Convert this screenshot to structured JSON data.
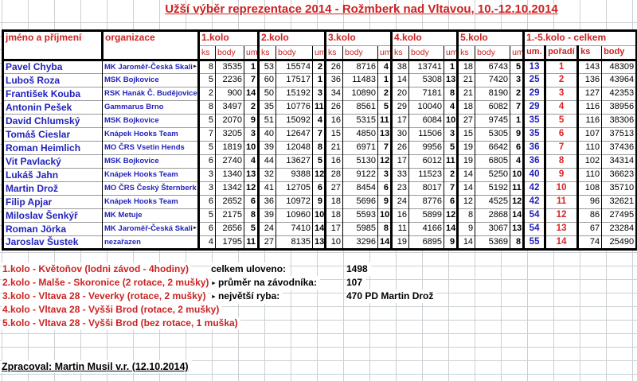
{
  "title": "Užší výběr reprezentace 2014 - Rožmberk nad Vltavou, 10.-12.10.2014",
  "colors": {
    "header_red": "#cc2222",
    "name_blue": "#2222bb",
    "poradi_red": "#dd2222",
    "gridline": "#cbd0d4",
    "table_border": "#000000"
  },
  "truncation_marker": "►",
  "table": {
    "headers": {
      "name": "jméno a příjmení",
      "org": "organizace",
      "rounds": [
        "1.kolo",
        "2.kolo",
        "3.kolo",
        "4.kolo",
        "5.kolo"
      ],
      "round_sub": [
        "ks",
        "body",
        "um."
      ],
      "total": "1.-5.kolo - celkem",
      "total_sub": [
        "um.",
        "pořadí",
        "ks",
        "body"
      ]
    },
    "rows": [
      {
        "name": "Pavel Chyba",
        "org": "MK Jaroměř-Česká Skalice",
        "org_truncated": true,
        "k": [
          [
            8,
            3535,
            1
          ],
          [
            53,
            15574,
            2
          ],
          [
            26,
            8716,
            4
          ],
          [
            38,
            13741,
            1
          ],
          [
            18,
            6743,
            5
          ]
        ],
        "um": 13,
        "poradi": 1,
        "ks": 143,
        "body": 48309
      },
      {
        "name": "Luboš Roza",
        "org": "MSK Bojkovice",
        "k": [
          [
            5,
            2236,
            7
          ],
          [
            60,
            17517,
            1
          ],
          [
            36,
            11483,
            1
          ],
          [
            14,
            5308,
            13
          ],
          [
            21,
            7420,
            3
          ]
        ],
        "um": 25,
        "poradi": 2,
        "ks": 136,
        "body": 43964
      },
      {
        "name": "František Kouba",
        "org": "RSK Hanák Č. Budějovice",
        "k": [
          [
            2,
            900,
            14
          ],
          [
            50,
            15192,
            3
          ],
          [
            34,
            10890,
            2
          ],
          [
            20,
            7181,
            8
          ],
          [
            21,
            8190,
            2
          ]
        ],
        "um": 29,
        "poradi": 3,
        "ks": 127,
        "body": 42353
      },
      {
        "name": "Antonin Pešek",
        "org": "Gammarus Brno",
        "k": [
          [
            8,
            3497,
            2
          ],
          [
            35,
            10776,
            11
          ],
          [
            26,
            8561,
            5
          ],
          [
            29,
            10040,
            4
          ],
          [
            18,
            6082,
            7
          ]
        ],
        "um": 29,
        "poradi": 4,
        "ks": 116,
        "body": 38956
      },
      {
        "name": "David Chlumský",
        "org": "MSK Bojkovice",
        "k": [
          [
            5,
            2070,
            9
          ],
          [
            51,
            15092,
            4
          ],
          [
            16,
            5315,
            11
          ],
          [
            17,
            6084,
            10
          ],
          [
            27,
            9745,
            1
          ]
        ],
        "um": 35,
        "poradi": 5,
        "ks": 116,
        "body": 38306
      },
      {
        "name": "Tomáš Cieslar",
        "org": "Knápek Hooks Team",
        "k": [
          [
            7,
            3205,
            3
          ],
          [
            40,
            12647,
            7
          ],
          [
            15,
            4850,
            13
          ],
          [
            30,
            11506,
            3
          ],
          [
            15,
            5305,
            9
          ]
        ],
        "um": 35,
        "poradi": 6,
        "ks": 107,
        "body": 37513
      },
      {
        "name": "Roman Heimlich",
        "org": "MO ČRS Vsetin Hends",
        "k": [
          [
            5,
            1819,
            10
          ],
          [
            39,
            12048,
            8
          ],
          [
            21,
            6971,
            7
          ],
          [
            26,
            9956,
            5
          ],
          [
            19,
            6642,
            6
          ]
        ],
        "um": 36,
        "poradi": 7,
        "ks": 110,
        "body": 37436
      },
      {
        "name": "Vit Pavlacký",
        "org": "MSK Bojkovice",
        "k": [
          [
            6,
            2740,
            4
          ],
          [
            44,
            13627,
            5
          ],
          [
            16,
            5130,
            12
          ],
          [
            17,
            6012,
            11
          ],
          [
            19,
            6805,
            4
          ]
        ],
        "um": 36,
        "poradi": 8,
        "ks": 102,
        "body": 34314
      },
      {
        "name": "Lukáš Jahn",
        "org": "Knápek Hooks Team",
        "k": [
          [
            3,
            1340,
            13
          ],
          [
            32,
            9388,
            12
          ],
          [
            28,
            9122,
            3
          ],
          [
            33,
            11523,
            2
          ],
          [
            14,
            5250,
            10
          ]
        ],
        "um": 40,
        "poradi": 9,
        "ks": 110,
        "body": 36623
      },
      {
        "name": "Martin Drož",
        "org": "MO ČRS Český Šternberk",
        "k": [
          [
            3,
            1342,
            12
          ],
          [
            41,
            12705,
            6
          ],
          [
            27,
            8454,
            6
          ],
          [
            23,
            8017,
            7
          ],
          [
            14,
            5192,
            11
          ]
        ],
        "um": 42,
        "poradi": 10,
        "ks": 108,
        "body": 35710
      },
      {
        "name": "Filip Apjar",
        "org": "Knápek Hooks Team",
        "k": [
          [
            6,
            2652,
            6
          ],
          [
            36,
            10972,
            9
          ],
          [
            18,
            5696,
            9
          ],
          [
            24,
            8776,
            6
          ],
          [
            12,
            4525,
            12
          ]
        ],
        "um": 42,
        "poradi": 11,
        "ks": 96,
        "body": 32621
      },
      {
        "name": "Miloslav Šenkýř",
        "org": "MK Metuje",
        "k": [
          [
            5,
            2175,
            8
          ],
          [
            39,
            10960,
            10
          ],
          [
            18,
            5593,
            10
          ],
          [
            16,
            5899,
            12
          ],
          [
            8,
            2868,
            14
          ]
        ],
        "um": 54,
        "poradi": 12,
        "ks": 86,
        "body": 27495
      },
      {
        "name": "Roman Jörka",
        "org": "MK Jaroměř-Česká Skalice",
        "org_truncated": true,
        "k": [
          [
            6,
            2656,
            5
          ],
          [
            24,
            7410,
            14
          ],
          [
            17,
            5985,
            8
          ],
          [
            11,
            4166,
            14
          ],
          [
            9,
            3067,
            13
          ]
        ],
        "um": 54,
        "poradi": 13,
        "ks": 67,
        "body": 23284
      },
      {
        "name": "Jaroslav Šustek",
        "org": "nezařazen",
        "k": [
          [
            4,
            1795,
            11
          ],
          [
            27,
            8135,
            13
          ],
          [
            10,
            3296,
            14
          ],
          [
            19,
            6895,
            9
          ],
          [
            14,
            5369,
            8
          ]
        ],
        "um": 55,
        "poradi": 14,
        "ks": 74,
        "body": 25490
      }
    ]
  },
  "notes": [
    {
      "text": "1.kolo - Květoňov (lodni závod - 4hodiny)"
    },
    {
      "text": "2.kolo - Malše - Skoronice (2 rotace, 2 mušky)",
      "truncated": true
    },
    {
      "text": "3.kolo - Vltava 28 - Veverky (rotace, 2 mušky)",
      "truncated": true
    },
    {
      "text": "4.kolo - Vltava 28 - Vyšši Brod (rotace, 2 mušky)"
    },
    {
      "text": "5.kolo - Vltava 28 - Vyšši Brod (bez rotace, 1 muška)"
    }
  ],
  "summary": [
    {
      "label": "celkem uloveno:",
      "value": "1498"
    },
    {
      "label": "průměr na závodníka:",
      "value": "107"
    },
    {
      "label": "největší ryba:",
      "value": "470 PD Martin Drož"
    }
  ],
  "footer": "Zpracoval: Martin Musil v.r. (12.10.2014)"
}
